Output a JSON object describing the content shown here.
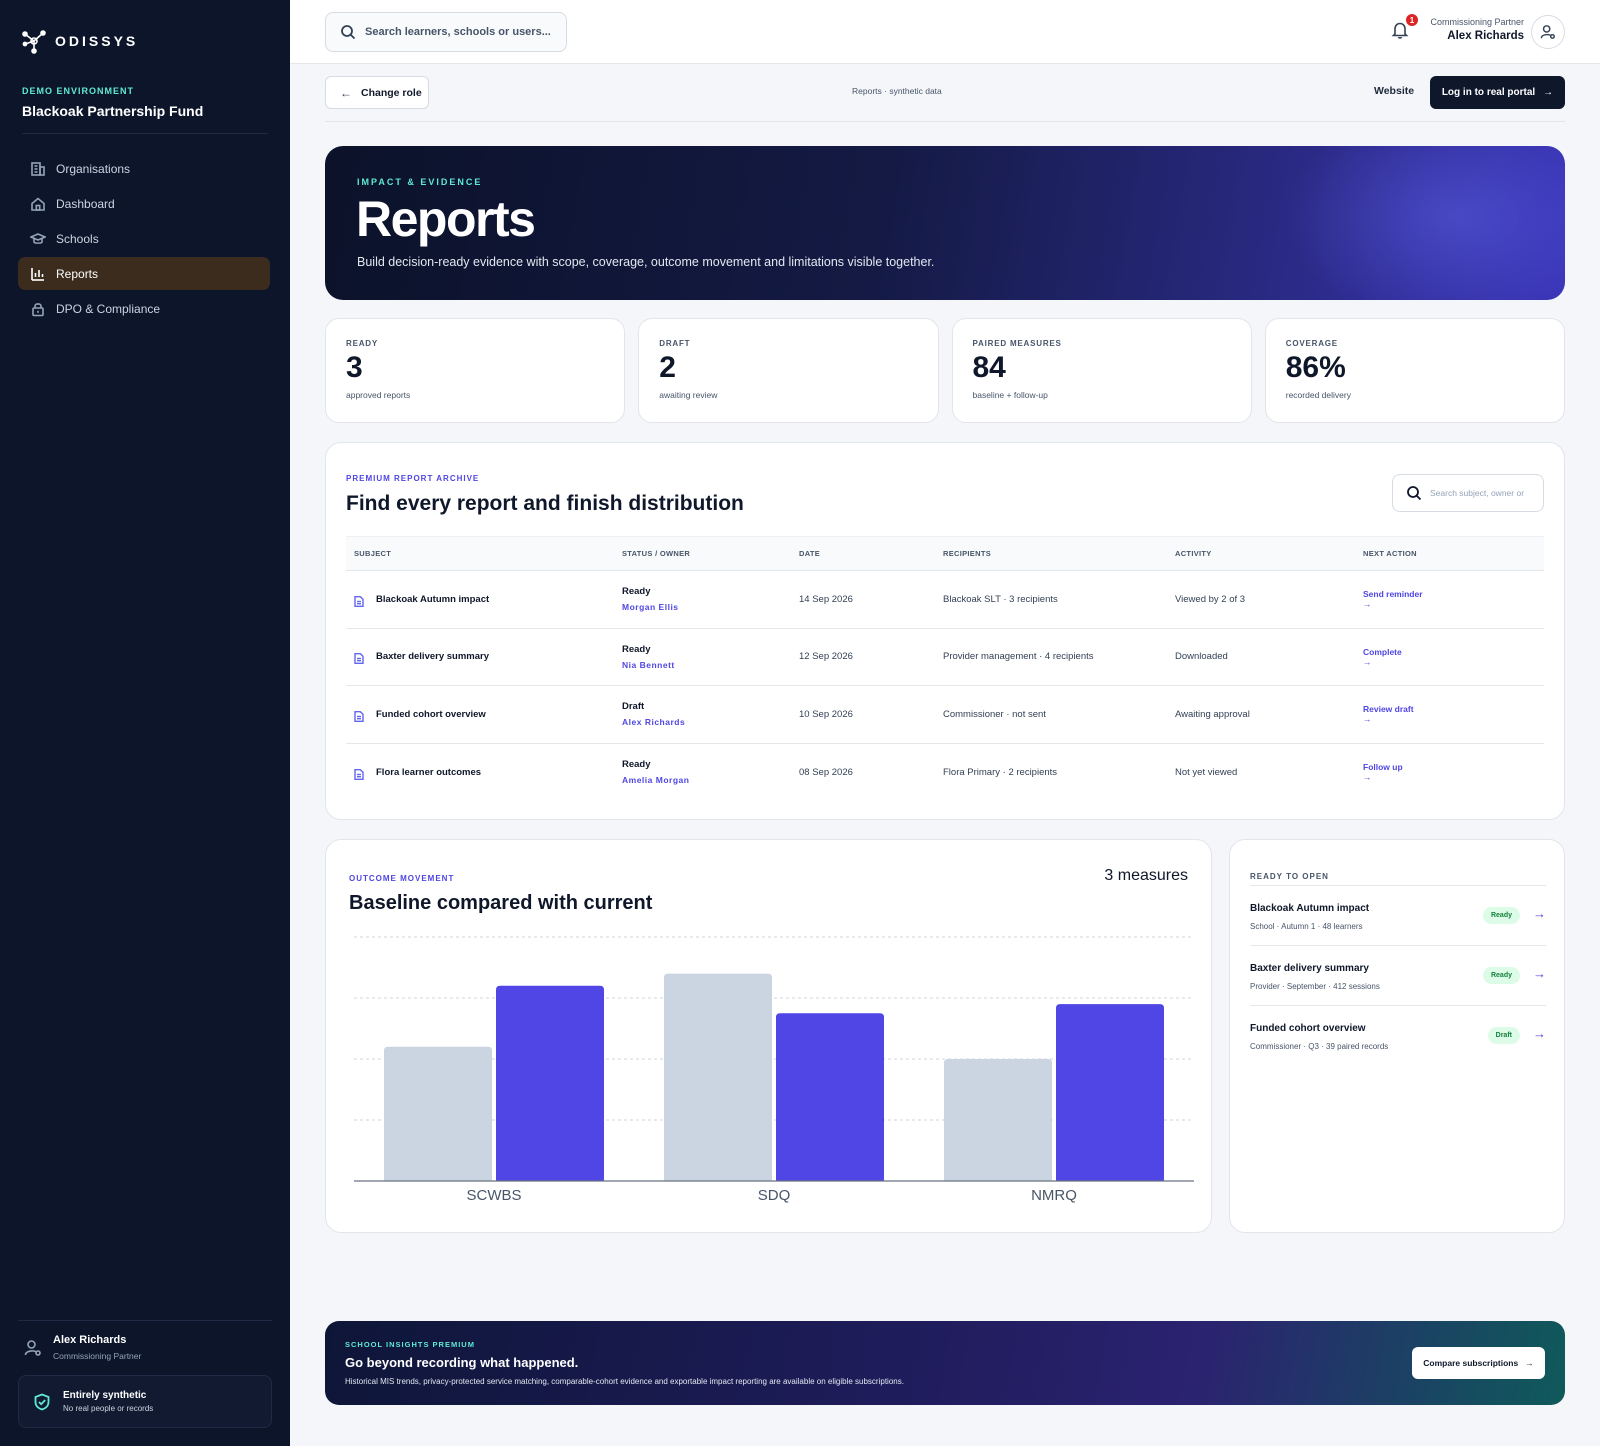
{
  "brand": {
    "logo_text": "ODISSYS"
  },
  "sidebar": {
    "env_label": "DEMO ENVIRONMENT",
    "org_name": "Blackoak Partnership Fund",
    "items": [
      {
        "label": "Organisations",
        "icon": "building-icon"
      },
      {
        "label": "Dashboard",
        "icon": "home-icon"
      },
      {
        "label": "Schools",
        "icon": "graduation-cap-icon"
      },
      {
        "label": "Reports",
        "icon": "bar-chart-icon",
        "active": true
      },
      {
        "label": "DPO & Compliance",
        "icon": "lock-icon"
      }
    ],
    "user": {
      "name": "Alex Richards",
      "role": "Commissioning Partner"
    },
    "synthetic": {
      "title": "Entirely synthetic",
      "subtitle": "No real people or records"
    }
  },
  "topbar": {
    "search_placeholder": "Search learners, schools or users...",
    "notification_count": "1",
    "user_role": "Commissioning Partner",
    "user_name": "Alex Richards"
  },
  "actions": {
    "change_role": "Change role",
    "breadcrumb": "Reports · synthetic data",
    "website": "Website",
    "login": "Log in to real portal"
  },
  "hero": {
    "eyebrow": "IMPACT & EVIDENCE",
    "title": "Reports",
    "subtitle": "Build decision-ready evidence with scope, coverage, outcome movement and limitations visible together."
  },
  "stats": [
    {
      "label": "READY",
      "value": "3",
      "sub": "approved reports"
    },
    {
      "label": "DRAFT",
      "value": "2",
      "sub": "awaiting review"
    },
    {
      "label": "PAIRED MEASURES",
      "value": "84",
      "sub": "baseline + follow-up"
    },
    {
      "label": "COVERAGE",
      "value": "86%",
      "sub": "recorded delivery"
    }
  ],
  "archive": {
    "eyebrow": "PREMIUM REPORT ARCHIVE",
    "title": "Find every report and finish distribution",
    "search_placeholder": "Search subject, owner or",
    "columns": [
      "SUBJECT",
      "STATUS / OWNER",
      "DATE",
      "RECIPIENTS",
      "ACTIVITY",
      "NEXT ACTION"
    ],
    "rows": [
      {
        "subject": "Blackoak Autumn impact",
        "status": "Ready",
        "owner": "Morgan Ellis",
        "date": "14 Sep 2026",
        "recipients": "Blackoak SLT · 3 recipients",
        "activity": "Viewed by 2 of 3",
        "next": "Send reminder",
        "arrow": "→"
      },
      {
        "subject": "Baxter delivery summary",
        "status": "Ready",
        "owner": "Nia Bennett",
        "date": "12 Sep 2026",
        "recipients": "Provider management · 4 recipients",
        "activity": "Downloaded",
        "next": "Complete",
        "arrow": "→"
      },
      {
        "subject": "Funded cohort overview",
        "status": "Draft",
        "owner": "Alex Richards",
        "date": "10 Sep 2026",
        "recipients": "Commissioner · not sent",
        "activity": "Awaiting approval",
        "next": "Review draft",
        "arrow": "→"
      },
      {
        "subject": "Flora learner outcomes",
        "status": "Ready",
        "owner": "Amelia Morgan",
        "date": "08 Sep 2026",
        "recipients": "Flora Primary · 2 recipients",
        "activity": "Not yet viewed",
        "next": "Follow up",
        "arrow": "→"
      }
    ]
  },
  "outcome": {
    "eyebrow": "OUTCOME MOVEMENT",
    "title": "Baseline compared with current",
    "count": "3 measures"
  },
  "chart_data": {
    "type": "bar",
    "categories": [
      "SCWBS",
      "SDQ",
      "NMRQ"
    ],
    "series": [
      {
        "values": [
          2.2,
          3.4,
          2.0
        ],
        "color": "#cbd5e1"
      },
      {
        "values": [
          3.2,
          2.75,
          2.9
        ],
        "color": "#4f46e5"
      }
    ],
    "ylim": [
      0,
      4
    ],
    "grid": true,
    "title": "",
    "xlabel": "",
    "ylabel": ""
  },
  "ready": {
    "eyebrow": "READY TO OPEN",
    "items": [
      {
        "title": "Blackoak Autumn impact",
        "sub": "School · Autumn 1 · 48 learners",
        "badge": "Ready"
      },
      {
        "title": "Baxter delivery summary",
        "sub": "Provider · September · 412 sessions",
        "badge": "Ready"
      },
      {
        "title": "Funded cohort overview",
        "sub": "Commissioner · Q3 · 39 paired records",
        "badge": "Draft"
      }
    ]
  },
  "premium": {
    "eyebrow": "SCHOOL INSIGHTS PREMIUM",
    "title": "Go beyond recording what happened.",
    "subtitle": "Historical MIS trends, privacy-protected service matching, comparable-cohort evidence and exportable impact reporting are available on eligible subscriptions.",
    "button": "Compare subscriptions"
  }
}
